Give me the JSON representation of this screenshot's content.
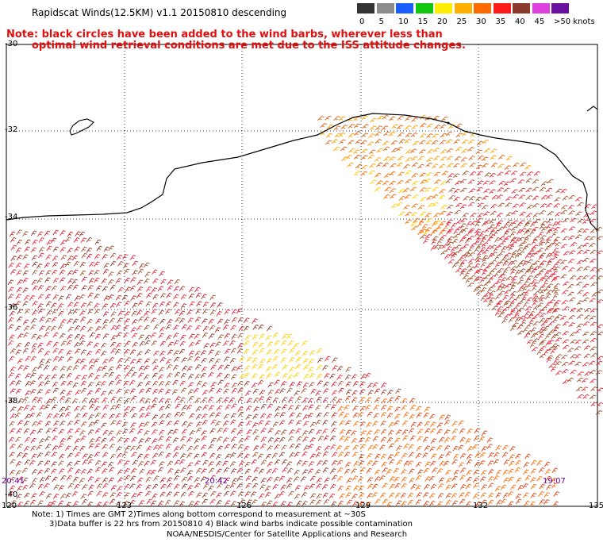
{
  "header": {
    "title": "Rapidscat Winds(12.5KM) v1.1 20150810 descending",
    "note_line1": "Note: black circles have been added to the wind barbs, wherever less than",
    "note_line2": "optimal wind retrieval conditions are met due to the ISS attitude changes."
  },
  "legend": {
    "labels": [
      "0",
      "5",
      "10",
      "15",
      "20",
      "25",
      "30",
      "35",
      "40",
      "45",
      ">50 knots"
    ],
    "colors": [
      "#333333",
      "#8c8c8c",
      "#1a5cff",
      "#10c810",
      "#ffee00",
      "#ffb000",
      "#ff6a00",
      "#ff1a1a",
      "#8b3a2a",
      "#e040e0",
      "#6a10a0"
    ]
  },
  "axes": {
    "lat_labels": [
      "-30",
      "-32",
      "-34",
      "-36",
      "-38",
      "-40"
    ],
    "lon_labels": [
      "120",
      "123",
      "126",
      "129",
      "132",
      "135"
    ]
  },
  "times": {
    "t1": "20:41",
    "t2": "20:42",
    "t3": "19:07"
  },
  "footer": {
    "line1": "Note: 1) Times are GMT 2)Times along bottom correspond to measurement at ~30S",
    "line2": "3)Data buffer is 22 hrs from 20150810 4) Black wind barbs indicate possible contamination",
    "line3": "NOAA/NESDIS/Center for Satellite Applications and Research"
  }
}
